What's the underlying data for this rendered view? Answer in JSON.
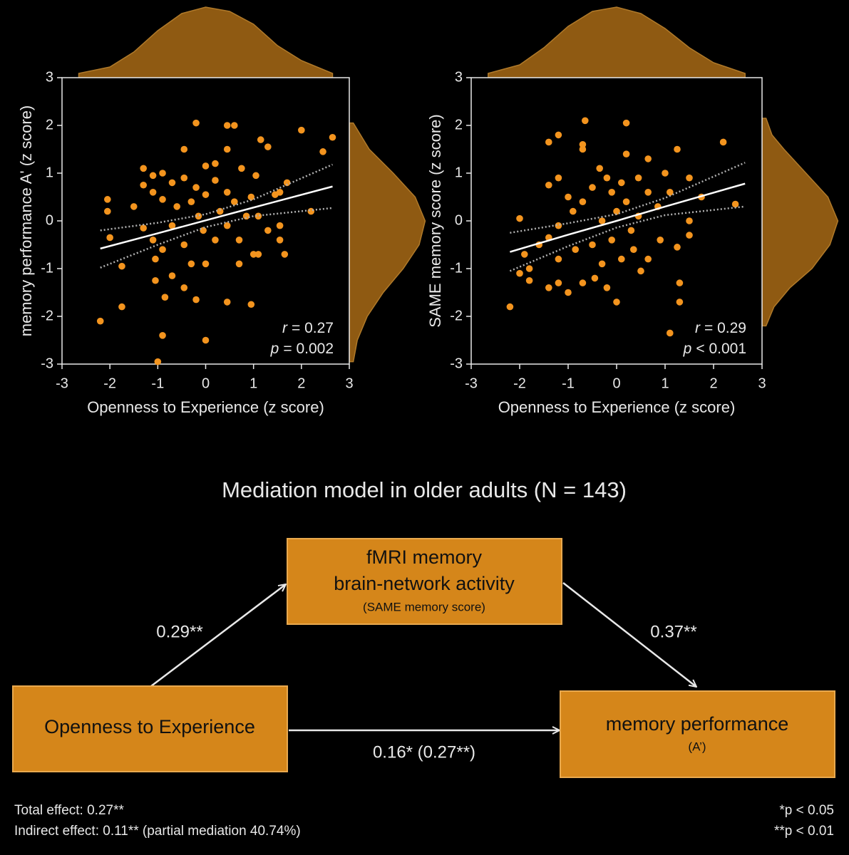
{
  "chart_data": [
    {
      "type": "scatter",
      "xlabel": "Openness to Experience (z score)",
      "ylabel": "memory performance A' (z score)",
      "xlim": [
        -3,
        3
      ],
      "ylim": [
        -3,
        3
      ],
      "xticks": [
        -3,
        -2,
        -1,
        0,
        1,
        2,
        3
      ],
      "yticks": [
        -3,
        -2,
        -1,
        0,
        1,
        2,
        3
      ],
      "color": "#f3941e",
      "fit_color": "#ffffff",
      "ci_color": "#b0b0b0",
      "density_color": "#8f5a12",
      "annotation": [
        {
          "symbol": "r",
          "text": "= 0.27"
        },
        {
          "symbol": "p",
          "text": "= 0.002"
        }
      ],
      "x": [
        -2.2,
        -2.05,
        -2.05,
        -2.0,
        -1.75,
        -1.75,
        -1.5,
        -1.3,
        -1.3,
        -1.3,
        -1.1,
        -1.1,
        -1.1,
        -1.05,
        -1.05,
        -1.0,
        -0.9,
        -0.9,
        -0.9,
        -0.9,
        -0.85,
        -0.7,
        -0.7,
        -0.7,
        -0.6,
        -0.45,
        -0.45,
        -0.45,
        -0.45,
        -0.3,
        -0.3,
        -0.2,
        -0.2,
        -0.2,
        -0.15,
        -0.05,
        0.0,
        0.0,
        0.0,
        0.0,
        0.2,
        0.2,
        0.2,
        0.3,
        0.45,
        0.45,
        0.45,
        0.45,
        0.45,
        0.6,
        0.6,
        0.7,
        0.7,
        0.75,
        0.85,
        0.95,
        0.95,
        1.0,
        1.05,
        1.1,
        1.1,
        1.15,
        1.3,
        1.3,
        1.45,
        1.55,
        1.55,
        1.55,
        1.65,
        1.7,
        2.0,
        2.2,
        2.45,
        2.65
      ],
      "values": [
        -2.1,
        0.45,
        0.2,
        -0.35,
        -0.95,
        -1.8,
        0.3,
        1.1,
        0.75,
        -0.15,
        0.95,
        0.6,
        -0.4,
        -0.8,
        -1.25,
        -2.95,
        1.0,
        0.45,
        -0.6,
        -2.4,
        -1.6,
        0.8,
        -0.1,
        -1.15,
        0.3,
        1.5,
        0.9,
        -0.5,
        -1.4,
        0.4,
        -0.9,
        2.05,
        0.7,
        -1.65,
        0.1,
        -0.2,
        1.15,
        0.55,
        -0.9,
        -2.5,
        1.2,
        0.85,
        -0.4,
        0.2,
        2.0,
        1.5,
        0.6,
        -0.1,
        -1.7,
        2.0,
        0.4,
        -0.4,
        -0.9,
        1.1,
        0.1,
        0.5,
        -1.75,
        -0.7,
        0.95,
        0.1,
        -0.7,
        1.7,
        1.55,
        -0.2,
        0.55,
        0.6,
        -0.1,
        -0.4,
        -0.7,
        0.8,
        1.9,
        0.2,
        1.45,
        1.75
      ],
      "fit": {
        "x": [
          -2.2,
          -1,
          0,
          1,
          2.65
        ],
        "values": [
          -0.58,
          -0.26,
          0.01,
          0.28,
          0.72
        ],
        "upper": [
          -0.2,
          -0.04,
          0.14,
          0.45,
          1.18
        ],
        "lower": [
          -0.98,
          -0.5,
          -0.13,
          0.1,
          0.27
        ]
      },
      "x_density": {
        "x": [
          -2.65,
          -2,
          -1.5,
          -1,
          -0.5,
          0,
          0.5,
          1,
          1.5,
          2,
          2.65
        ],
        "values": [
          0.02,
          0.05,
          0.12,
          0.22,
          0.3,
          0.33,
          0.31,
          0.25,
          0.15,
          0.08,
          0.02
        ]
      },
      "y_density": {
        "x": [
          -2.95,
          -2.5,
          -2,
          -1.5,
          -1,
          -0.5,
          0,
          0.5,
          1,
          1.5,
          2.05
        ],
        "values": [
          0.02,
          0.04,
          0.09,
          0.17,
          0.27,
          0.35,
          0.38,
          0.33,
          0.22,
          0.1,
          0.02
        ]
      }
    },
    {
      "type": "scatter",
      "xlabel": "Openness to Experience (z score)",
      "ylabel": "SAME memory score (z score)",
      "xlim": [
        -3,
        3
      ],
      "ylim": [
        -3,
        3
      ],
      "xticks": [
        -3,
        -2,
        -1,
        0,
        1,
        2,
        3
      ],
      "yticks": [
        -3,
        -2,
        -1,
        0,
        1,
        2,
        3
      ],
      "color": "#f3941e",
      "fit_color": "#ffffff",
      "ci_color": "#b0b0b0",
      "density_color": "#8f5a12",
      "annotation": [
        {
          "symbol": "r",
          "text": "= 0.29"
        },
        {
          "symbol": "p",
          "text": "< 0.001"
        }
      ],
      "x": [
        -2.2,
        -2.0,
        -2.0,
        -1.9,
        -1.8,
        -1.8,
        -1.6,
        -1.4,
        -1.4,
        -1.4,
        -1.4,
        -1.2,
        -1.2,
        -1.2,
        -1.2,
        -1.2,
        -1.0,
        -1.0,
        -0.9,
        -0.85,
        -0.7,
        -0.7,
        -0.7,
        -0.7,
        -0.65,
        -0.5,
        -0.5,
        -0.45,
        -0.35,
        -0.3,
        -0.3,
        -0.2,
        -0.2,
        -0.1,
        -0.1,
        0.0,
        0.0,
        0.1,
        0.1,
        0.2,
        0.2,
        0.2,
        0.3,
        0.35,
        0.45,
        0.45,
        0.5,
        0.65,
        0.65,
        0.65,
        0.85,
        0.9,
        1.0,
        1.1,
        1.1,
        1.25,
        1.25,
        1.3,
        1.3,
        1.5,
        1.5,
        1.5,
        1.75,
        2.2,
        2.45
      ],
      "values": [
        -1.8,
        0.05,
        -1.1,
        -0.7,
        -1.0,
        -1.25,
        -0.5,
        1.65,
        0.75,
        -0.35,
        -1.4,
        1.8,
        0.9,
        -0.1,
        -0.8,
        -1.3,
        0.5,
        -1.5,
        0.2,
        -0.6,
        1.6,
        1.5,
        0.4,
        -1.3,
        2.1,
        0.7,
        -0.5,
        -1.2,
        1.1,
        0.0,
        -0.9,
        0.9,
        -1.4,
        0.6,
        -0.4,
        -1.7,
        0.2,
        0.8,
        -0.8,
        2.05,
        1.4,
        0.4,
        -0.2,
        -0.6,
        0.9,
        0.1,
        -1.05,
        1.3,
        0.6,
        -0.8,
        0.3,
        -0.4,
        1.0,
        -2.35,
        0.6,
        1.5,
        -0.55,
        -1.3,
        -1.7,
        0.9,
        0.0,
        -0.3,
        0.5,
        1.65,
        0.35
      ],
      "fit": {
        "x": [
          -2.2,
          -1,
          0,
          1,
          2.65
        ],
        "values": [
          -0.65,
          -0.29,
          0.0,
          0.3,
          0.78
        ],
        "upper": [
          -0.25,
          -0.05,
          0.14,
          0.48,
          1.22
        ],
        "lower": [
          -1.05,
          -0.53,
          -0.14,
          0.12,
          0.3
        ]
      },
      "x_density": {
        "x": [
          -2.65,
          -2,
          -1.5,
          -1,
          -0.5,
          0,
          0.5,
          1,
          1.5,
          2,
          2.65
        ],
        "values": [
          0.02,
          0.06,
          0.14,
          0.24,
          0.31,
          0.33,
          0.3,
          0.23,
          0.14,
          0.07,
          0.02
        ]
      },
      "y_density": {
        "x": [
          -2.2,
          -1.8,
          -1.4,
          -1,
          -0.5,
          0,
          0.5,
          1,
          1.5,
          1.8,
          2.15
        ],
        "values": [
          0.02,
          0.06,
          0.14,
          0.25,
          0.34,
          0.38,
          0.33,
          0.22,
          0.11,
          0.05,
          0.02
        ]
      }
    }
  ],
  "diagram": {
    "title": "Mediation model in older adults (N = 143)",
    "nodes": [
      {
        "lines": [
          "fMRI memory",
          "brain-network activity"
        ],
        "note": "(SAME memory score)"
      },
      {
        "lines": [
          "Openness to Experience"
        ]
      },
      {
        "lines": [
          "memory performance"
        ],
        "note": "(A’)"
      }
    ],
    "edges": [
      {
        "label": "0.29**"
      },
      {
        "label": "0.37**"
      },
      {
        "label": "0.16* (0.27**)"
      }
    ],
    "footnotes": {
      "left": [
        "Total effect: 0.27**",
        "Indirect effect: 0.11** (partial mediation 40.74%)"
      ],
      "right": [
        "*p < 0.05",
        "**p < 0.01"
      ]
    }
  }
}
